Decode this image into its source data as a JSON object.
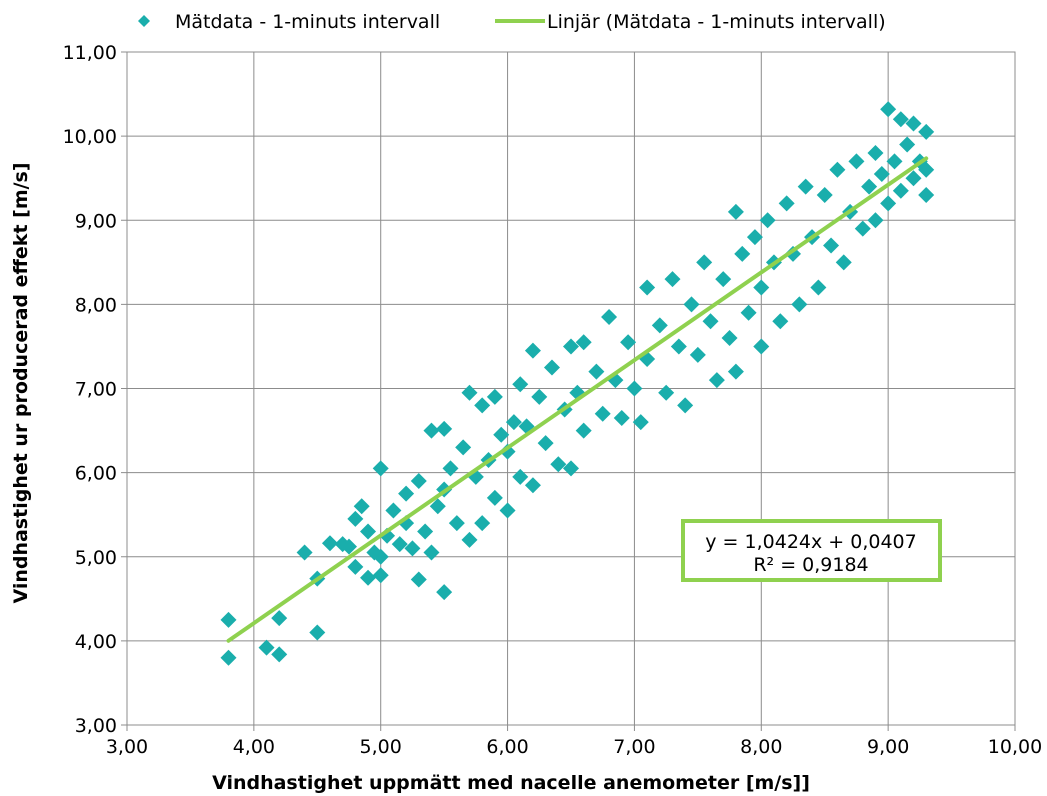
{
  "chart_data": {
    "type": "scatter",
    "xlabel": "Vindhastighet uppmätt med nacelle anemometer   [m/s]]",
    "ylabel": "Vindhastighet ur producerad effekt [m/s]",
    "xlim": [
      3.0,
      10.0
    ],
    "ylim": [
      3.0,
      11.0
    ],
    "x_ticks": [
      "3,00",
      "4,00",
      "5,00",
      "6,00",
      "7,00",
      "8,00",
      "9,00",
      "10,00"
    ],
    "y_ticks": [
      "3,00",
      "4,00",
      "5,00",
      "6,00",
      "7,00",
      "8,00",
      "9,00",
      "10,00",
      "11,00"
    ],
    "grid": true,
    "legend_position": "top",
    "series": [
      {
        "name": "Mätdata - 1-minuts intervall",
        "kind": "scatter",
        "color": "#1aaeac",
        "marker": "diamond",
        "points": [
          [
            3.8,
            4.25
          ],
          [
            3.8,
            3.8
          ],
          [
            4.1,
            3.92
          ],
          [
            4.2,
            3.84
          ],
          [
            4.2,
            4.27
          ],
          [
            4.4,
            5.05
          ],
          [
            4.5,
            4.1
          ],
          [
            4.5,
            4.74
          ],
          [
            4.6,
            5.16
          ],
          [
            4.7,
            5.15
          ],
          [
            4.75,
            5.12
          ],
          [
            4.8,
            5.45
          ],
          [
            4.8,
            4.88
          ],
          [
            4.85,
            5.6
          ],
          [
            4.9,
            4.75
          ],
          [
            4.9,
            5.3
          ],
          [
            4.95,
            5.05
          ],
          [
            5.0,
            6.05
          ],
          [
            5.0,
            4.78
          ],
          [
            5.0,
            5.0
          ],
          [
            5.05,
            5.25
          ],
          [
            5.1,
            5.55
          ],
          [
            5.15,
            5.15
          ],
          [
            5.2,
            5.75
          ],
          [
            5.2,
            5.4
          ],
          [
            5.25,
            5.1
          ],
          [
            5.3,
            4.73
          ],
          [
            5.3,
            5.9
          ],
          [
            5.35,
            5.3
          ],
          [
            5.4,
            6.5
          ],
          [
            5.4,
            5.05
          ],
          [
            5.45,
            5.6
          ],
          [
            5.5,
            6.52
          ],
          [
            5.5,
            4.58
          ],
          [
            5.5,
            5.8
          ],
          [
            5.55,
            6.05
          ],
          [
            5.6,
            5.4
          ],
          [
            5.65,
            6.3
          ],
          [
            5.7,
            6.95
          ],
          [
            5.7,
            5.2
          ],
          [
            5.75,
            5.95
          ],
          [
            5.8,
            6.8
          ],
          [
            5.8,
            5.4
          ],
          [
            5.85,
            6.15
          ],
          [
            5.9,
            6.9
          ],
          [
            5.9,
            5.7
          ],
          [
            5.95,
            6.45
          ],
          [
            6.0,
            6.25
          ],
          [
            6.0,
            5.55
          ],
          [
            6.05,
            6.6
          ],
          [
            6.1,
            7.05
          ],
          [
            6.1,
            5.95
          ],
          [
            6.15,
            6.55
          ],
          [
            6.2,
            7.45
          ],
          [
            6.2,
            5.85
          ],
          [
            6.25,
            6.9
          ],
          [
            6.3,
            6.35
          ],
          [
            6.35,
            7.25
          ],
          [
            6.4,
            6.1
          ],
          [
            6.45,
            6.75
          ],
          [
            6.5,
            7.5
          ],
          [
            6.5,
            6.05
          ],
          [
            6.55,
            6.95
          ],
          [
            6.6,
            7.55
          ],
          [
            6.6,
            6.5
          ],
          [
            6.7,
            7.2
          ],
          [
            6.75,
            6.7
          ],
          [
            6.8,
            7.85
          ],
          [
            6.85,
            7.1
          ],
          [
            6.9,
            6.65
          ],
          [
            6.95,
            7.55
          ],
          [
            7.0,
            7.0
          ],
          [
            7.05,
            6.6
          ],
          [
            7.1,
            8.2
          ],
          [
            7.1,
            7.35
          ],
          [
            7.2,
            7.75
          ],
          [
            7.25,
            6.95
          ],
          [
            7.3,
            8.3
          ],
          [
            7.35,
            7.5
          ],
          [
            7.4,
            6.8
          ],
          [
            7.45,
            8.0
          ],
          [
            7.5,
            7.4
          ],
          [
            7.55,
            8.5
          ],
          [
            7.6,
            7.8
          ],
          [
            7.65,
            7.1
          ],
          [
            7.7,
            8.3
          ],
          [
            7.75,
            7.6
          ],
          [
            7.8,
            9.1
          ],
          [
            7.8,
            7.2
          ],
          [
            7.85,
            8.6
          ],
          [
            7.9,
            7.9
          ],
          [
            7.95,
            8.8
          ],
          [
            8.0,
            8.2
          ],
          [
            8.0,
            7.5
          ],
          [
            8.05,
            9.0
          ],
          [
            8.1,
            8.5
          ],
          [
            8.15,
            7.8
          ],
          [
            8.2,
            9.2
          ],
          [
            8.25,
            8.6
          ],
          [
            8.3,
            8.0
          ],
          [
            8.35,
            9.4
          ],
          [
            8.4,
            8.8
          ],
          [
            8.45,
            8.2
          ],
          [
            8.5,
            9.3
          ],
          [
            8.55,
            8.7
          ],
          [
            8.6,
            9.6
          ],
          [
            8.65,
            8.5
          ],
          [
            8.7,
            9.1
          ],
          [
            8.75,
            9.7
          ],
          [
            8.8,
            8.9
          ],
          [
            8.85,
            9.4
          ],
          [
            8.9,
            9.8
          ],
          [
            8.9,
            9.0
          ],
          [
            8.95,
            9.55
          ],
          [
            9.0,
            10.32
          ],
          [
            9.0,
            9.2
          ],
          [
            9.05,
            9.7
          ],
          [
            9.1,
            10.2
          ],
          [
            9.1,
            9.35
          ],
          [
            9.15,
            9.9
          ],
          [
            9.2,
            9.5
          ],
          [
            9.2,
            10.15
          ],
          [
            9.25,
            9.7
          ],
          [
            9.3,
            9.3
          ],
          [
            9.3,
            10.05
          ],
          [
            9.3,
            9.6
          ]
        ]
      },
      {
        "name": "Linjär (Mätdata - 1-minuts intervall)",
        "kind": "trendline",
        "color": "#8fd14f",
        "slope": 1.0424,
        "intercept": 0.0407,
        "x_range": [
          3.8,
          9.3
        ]
      }
    ],
    "annotation": {
      "equation": "y = 1,0424x + 0,0407",
      "r_squared": "R² = 0,9184",
      "border_color": "#8fd14f"
    }
  }
}
